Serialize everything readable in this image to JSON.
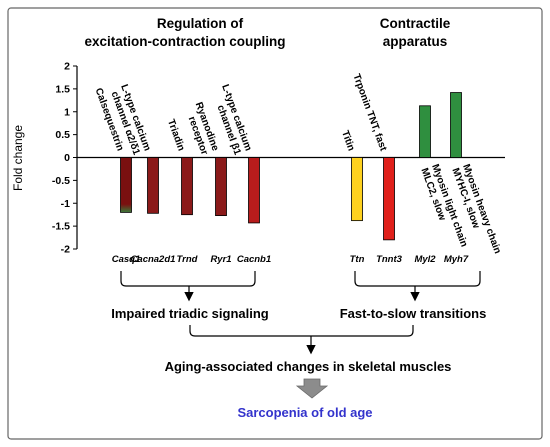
{
  "colors": {
    "frame": "#666666",
    "axis": "#000000",
    "bar_stroke": "#000000",
    "arrow_gray": "#8c8c8c",
    "final_text": "#3333cc"
  },
  "headers": {
    "left_line1": "Regulation of",
    "left_line2": "excitation-contraction coupling",
    "right_line1": "Contractile",
    "right_line2": "apparatus"
  },
  "chart_data": {
    "type": "bar",
    "ylabel": "Fold change",
    "ylim": [
      -2,
      2
    ],
    "yticks": [
      2,
      1.5,
      1,
      0.5,
      0,
      -0.5,
      -1,
      -1.5,
      -2
    ],
    "ytick_labels": [
      "2",
      "1.5",
      "1",
      "0.5",
      "0",
      "-0.5",
      "-1",
      "-1.5",
      "-2"
    ],
    "grid": false,
    "bars": [
      {
        "gene": "Casq1",
        "protein_lines": [
          "Calsequestrin"
        ],
        "value": -1.2,
        "fill_top": "#7a1010",
        "fill_bottom": "#3a7a3a"
      },
      {
        "gene": "Cacna2d1",
        "protein_lines": [
          "L-type calcium",
          "channel α2/δ1"
        ],
        "value": -1.22,
        "fill_top": "#8b1a1a",
        "fill_bottom": "#8b1a1a"
      },
      {
        "gene": "Trnd",
        "protein_lines": [
          "Triadin"
        ],
        "value": -1.25,
        "fill_top": "#8b1a1a",
        "fill_bottom": "#8b1a1a"
      },
      {
        "gene": "Ryr1",
        "protein_lines": [
          "Ryanodine",
          "receptor"
        ],
        "value": -1.27,
        "fill_top": "#8b1a1a",
        "fill_bottom": "#8b1a1a"
      },
      {
        "gene": "Cacnb1",
        "protein_lines": [
          "L-type calcium",
          "channel β1"
        ],
        "value": -1.43,
        "fill_top": "#b71c1c",
        "fill_bottom": "#b71c1c"
      },
      {
        "gene": "Ttn",
        "protein_lines": [
          "Titin"
        ],
        "value": -1.38,
        "fill_top": "#ffd21f",
        "fill_bottom": "#ffd21f"
      },
      {
        "gene": "Tnnt3",
        "protein_lines": [
          "Trponin TNT, fast"
        ],
        "value": -1.8,
        "fill_top": "#e0201b",
        "fill_bottom": "#e0201b"
      },
      {
        "gene": "Myl2",
        "protein_lines": [
          "Myosin light chain",
          "MLC2, slow"
        ],
        "value": 1.13,
        "fill_top": "#2f8f3f",
        "fill_bottom": "#2f8f3f"
      },
      {
        "gene": "Myh7",
        "protein_lines": [
          "Myosin heavy chain",
          "MYHC-I, slow"
        ],
        "value": 1.42,
        "fill_top": "#2f8f3f",
        "fill_bottom": "#2f8f3f"
      }
    ]
  },
  "flow": {
    "left_group": "Impaired triadic signaling",
    "right_group": "Fast-to-slow transitions",
    "middle": "Aging-associated changes in skeletal muscles",
    "final": "Sarcopenia of old age"
  }
}
